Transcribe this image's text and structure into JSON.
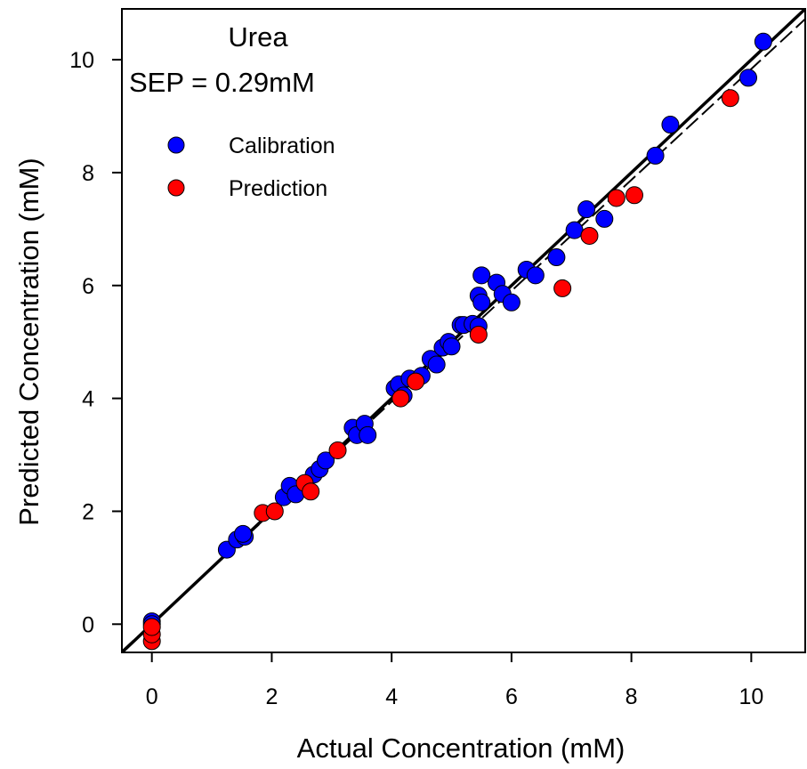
{
  "chart_data": {
    "type": "scatter",
    "title": "",
    "annotations": [
      "Urea",
      "SEP = 0.29mM"
    ],
    "xlabel": "Actual Concentration (mM)",
    "ylabel": "Predicted Concentration (mM)",
    "xlim": [
      -0.5,
      10.9
    ],
    "ylim": [
      -0.5,
      10.9
    ],
    "xticks": [
      0,
      2,
      4,
      6,
      8,
      10
    ],
    "yticks": [
      0,
      2,
      4,
      6,
      8,
      10
    ],
    "xtick_labels": [
      "0",
      "2",
      "4",
      "6",
      "8",
      "10"
    ],
    "ytick_labels": [
      "0",
      "2",
      "4",
      "6",
      "8",
      "10"
    ],
    "grid": false,
    "legend_position": "upper-left",
    "series": [
      {
        "name": "Calibration",
        "color": "#0000ff",
        "points": [
          [
            0.0,
            0.05
          ],
          [
            0.0,
            0.0
          ],
          [
            1.25,
            1.32
          ],
          [
            1.42,
            1.5
          ],
          [
            1.55,
            1.55
          ],
          [
            1.52,
            1.6
          ],
          [
            2.2,
            2.25
          ],
          [
            2.3,
            2.45
          ],
          [
            2.4,
            2.3
          ],
          [
            2.7,
            2.65
          ],
          [
            2.8,
            2.75
          ],
          [
            2.9,
            2.9
          ],
          [
            3.35,
            3.48
          ],
          [
            3.42,
            3.35
          ],
          [
            3.55,
            3.55
          ],
          [
            3.6,
            3.35
          ],
          [
            4.05,
            4.18
          ],
          [
            4.12,
            4.25
          ],
          [
            4.2,
            4.05
          ],
          [
            4.3,
            4.35
          ],
          [
            4.5,
            4.4
          ],
          [
            4.65,
            4.7
          ],
          [
            4.75,
            4.6
          ],
          [
            4.85,
            4.9
          ],
          [
            4.95,
            5.0
          ],
          [
            5.0,
            4.92
          ],
          [
            5.15,
            5.3
          ],
          [
            5.2,
            5.3
          ],
          [
            5.35,
            5.32
          ],
          [
            5.45,
            5.28
          ],
          [
            5.45,
            5.82
          ],
          [
            5.5,
            6.18
          ],
          [
            5.5,
            5.7
          ],
          [
            5.75,
            6.05
          ],
          [
            5.85,
            5.85
          ],
          [
            6.0,
            5.7
          ],
          [
            6.25,
            6.28
          ],
          [
            6.4,
            6.18
          ],
          [
            6.75,
            6.5
          ],
          [
            7.05,
            6.98
          ],
          [
            7.25,
            7.35
          ],
          [
            7.55,
            7.18
          ],
          [
            8.4,
            8.3
          ],
          [
            8.65,
            8.85
          ],
          [
            9.95,
            9.68
          ],
          [
            10.2,
            10.32
          ]
        ]
      },
      {
        "name": "Prediction",
        "color": "#ff0000",
        "points": [
          [
            0.0,
            -0.3
          ],
          [
            0.0,
            -0.18
          ],
          [
            0.0,
            -0.05
          ],
          [
            1.85,
            1.97
          ],
          [
            2.05,
            2.0
          ],
          [
            2.55,
            2.5
          ],
          [
            2.65,
            2.35
          ],
          [
            3.1,
            3.08
          ],
          [
            4.15,
            4.0
          ],
          [
            4.4,
            4.3
          ],
          [
            5.45,
            5.13
          ],
          [
            6.85,
            5.95
          ],
          [
            7.3,
            6.88
          ],
          [
            7.75,
            7.55
          ],
          [
            8.05,
            7.6
          ],
          [
            9.65,
            9.32
          ]
        ]
      }
    ],
    "lines": [
      {
        "kind": "identity",
        "style": "solid",
        "x": [
          -0.5,
          10.9
        ],
        "y": [
          -0.5,
          10.9
        ]
      },
      {
        "kind": "fit",
        "style": "dashed",
        "x": [
          -0.5,
          10.9
        ],
        "y": [
          -0.48,
          10.72
        ]
      }
    ]
  }
}
